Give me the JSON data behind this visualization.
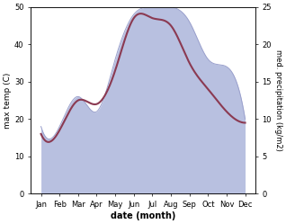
{
  "months": [
    "Jan",
    "Feb",
    "Mar",
    "Apr",
    "May",
    "Jun",
    "Jul",
    "Aug",
    "Sep",
    "Oct",
    "Nov",
    "Dec"
  ],
  "temp": [
    16,
    17,
    25,
    24,
    33,
    47,
    47,
    45,
    35,
    28,
    22,
    19
  ],
  "precip": [
    9,
    9,
    13,
    11,
    18,
    24,
    25,
    25,
    23,
    18,
    17,
    10
  ],
  "temp_color": "#8b3a52",
  "precip_fill_color": "#b8c0e0",
  "precip_edge_color": "#9aa0cc",
  "left_ylim": [
    0,
    50
  ],
  "right_ylim": [
    0,
    25
  ],
  "left_yticks": [
    0,
    10,
    20,
    30,
    40,
    50
  ],
  "right_yticks": [
    0,
    5,
    10,
    15,
    20,
    25
  ],
  "ylabel_left": "max temp (C)",
  "ylabel_right": "med. precipitation (kg/m2)",
  "xlabel": "date (month)",
  "line_width": 1.5,
  "fig_width": 3.18,
  "fig_height": 2.49,
  "dpi": 100
}
